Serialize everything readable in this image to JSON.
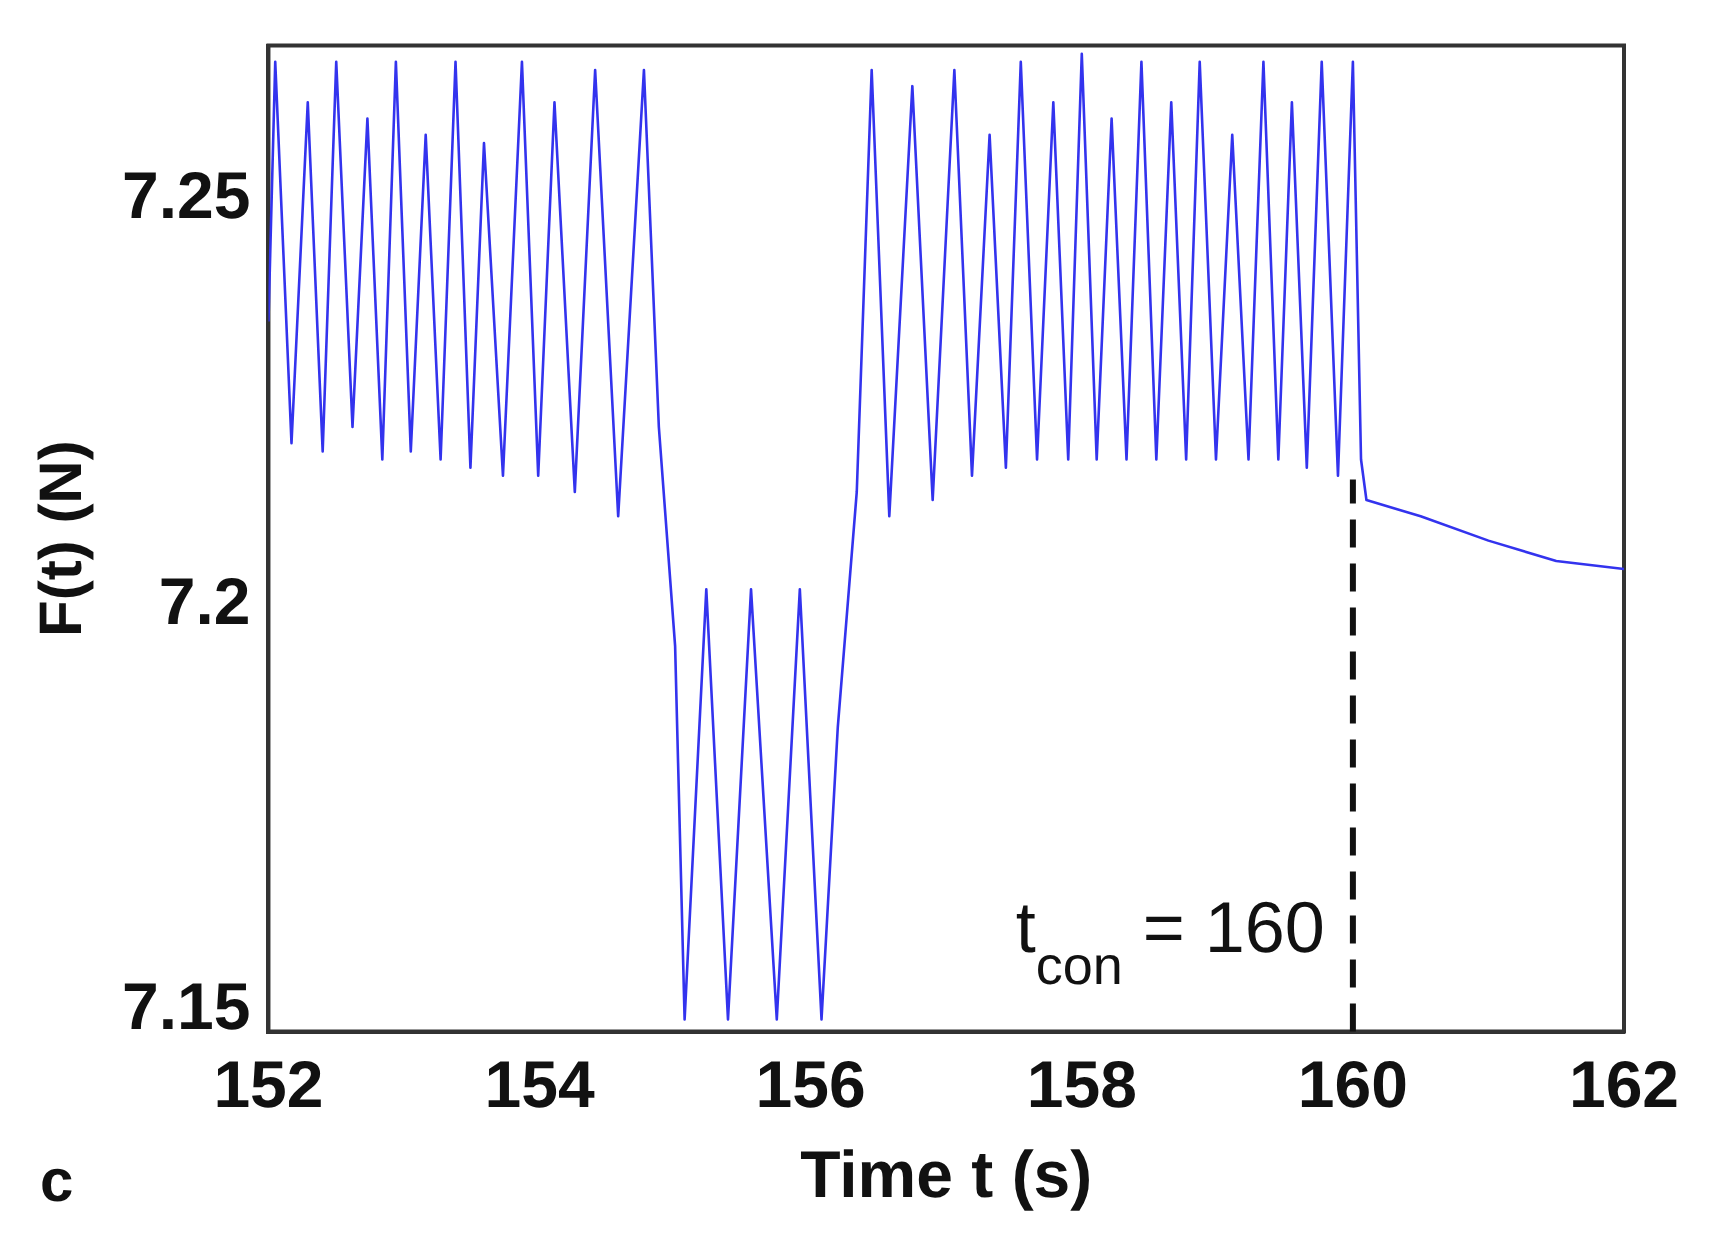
{
  "chart_data": {
    "type": "line",
    "xlabel": "Time t (s)",
    "ylabel": "F(t) (N)",
    "xlim": [
      152,
      162
    ],
    "xticks": [
      152,
      154,
      156,
      158,
      160,
      162
    ],
    "ylim": [
      7.1475,
      7.269
    ],
    "yticks": [
      7.15,
      {
        "value": 7.2,
        "label": "7.2"
      },
      7.25
    ],
    "grid": false,
    "legend": false,
    "marker": "none",
    "line_style": "solid",
    "series": [
      {
        "color": "#3333ee",
        "x": [
          152.0,
          152.05,
          152.17,
          152.29,
          152.4,
          152.5,
          152.62,
          152.73,
          152.84,
          152.94,
          153.05,
          153.16,
          153.27,
          153.38,
          153.49,
          153.59,
          153.73,
          153.87,
          153.99,
          154.11,
          154.26,
          154.41,
          154.58,
          154.77,
          154.88,
          155.0,
          155.07,
          155.23,
          155.39,
          155.56,
          155.75,
          155.92,
          156.08,
          156.2,
          156.34,
          156.45,
          156.58,
          156.75,
          156.9,
          157.06,
          157.19,
          157.32,
          157.44,
          157.55,
          157.67,
          157.79,
          157.9,
          158.0,
          158.11,
          158.22,
          158.33,
          158.44,
          158.55,
          158.66,
          158.77,
          158.87,
          158.99,
          159.11,
          159.23,
          159.34,
          159.45,
          159.55,
          159.66,
          159.77,
          159.89,
          160.0,
          160.06,
          160.1,
          160.5,
          161.0,
          161.5,
          162.0
        ],
        "values": [
          7.235,
          7.267,
          7.22,
          7.262,
          7.219,
          7.267,
          7.222,
          7.26,
          7.218,
          7.267,
          7.219,
          7.258,
          7.218,
          7.267,
          7.217,
          7.257,
          7.216,
          7.267,
          7.216,
          7.262,
          7.214,
          7.266,
          7.211,
          7.266,
          7.222,
          7.195,
          7.149,
          7.202,
          7.149,
          7.202,
          7.149,
          7.202,
          7.149,
          7.185,
          7.214,
          7.266,
          7.211,
          7.264,
          7.213,
          7.266,
          7.216,
          7.258,
          7.217,
          7.267,
          7.218,
          7.262,
          7.218,
          7.268,
          7.218,
          7.26,
          7.218,
          7.267,
          7.218,
          7.262,
          7.218,
          7.267,
          7.218,
          7.258,
          7.218,
          7.267,
          7.218,
          7.262,
          7.217,
          7.267,
          7.216,
          7.267,
          7.218,
          7.213,
          7.211,
          7.208,
          7.2055,
          7.2045
        ]
      }
    ],
    "ref_lines": [
      {
        "axis": "x",
        "value": 160,
        "label": "t$_{con}$ = 160",
        "color": "#111111",
        "line_style": "dashed"
      }
    ],
    "annotations": [
      "c"
    ]
  }
}
